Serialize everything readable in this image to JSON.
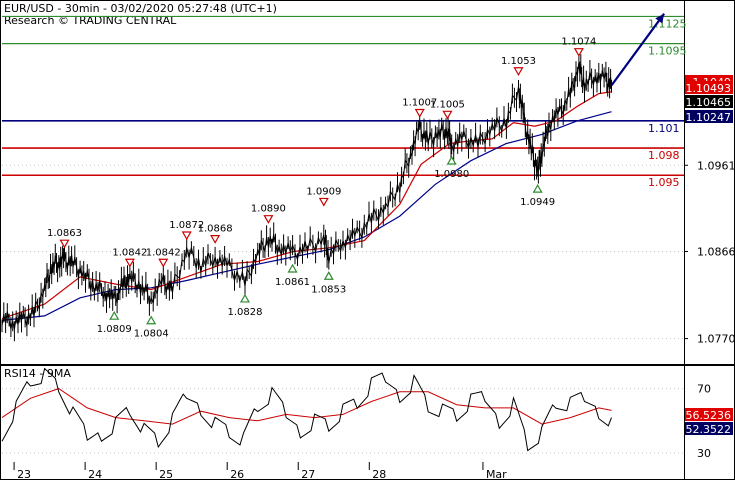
{
  "header": {
    "title": "EUR/USD - 30min - 03/02/2020 05:27:48 (UTC+1)",
    "credit": "Research © TRADING CENTRAL"
  },
  "colors": {
    "candle": "#000000",
    "ma_fast": "#cc0000",
    "ma_slow": "#00008b",
    "target_green": "#2e8b2e",
    "pivot_blue": "#00007f",
    "support_red": "#cc0000",
    "arrow": "#00007f",
    "marker_down": "#cc0000",
    "marker_up": "#2e8b2e",
    "label_red_bg": "#e00000",
    "label_black_bg": "#000000",
    "label_darkblue_bg": "#000060",
    "rsi_line": "#000000",
    "rsi_ma": "#cc0000"
  },
  "chart_data": [
    {
      "type": "line",
      "title": "EUR/USD - 30min",
      "ylim": [
        1.0742,
        1.1142
      ],
      "y_ticks": [
        "1.0961",
        "1.0866",
        "1.0770"
      ],
      "x_ticks": [
        "23",
        "24",
        "25",
        "26",
        "27",
        "28",
        "Mar"
      ],
      "levels": [
        {
          "label": "1.1125",
          "value": 1.1125,
          "color": "green"
        },
        {
          "label": "1.1095",
          "value": 1.1095,
          "color": "green"
        },
        {
          "label": "1.101",
          "value": 1.101,
          "color": "blue"
        },
        {
          "label": "1.098",
          "value": 1.098,
          "color": "red"
        },
        {
          "label": "1.095",
          "value": 1.095,
          "color": "red"
        }
      ],
      "price_tags": [
        {
          "label": "1.1049",
          "value": 1.1049,
          "style": "red"
        },
        {
          "label": "1.10493",
          "value": 1.10493,
          "style": "red"
        },
        {
          "label": "1.10465",
          "value": 1.10465,
          "style": "black"
        },
        {
          "label": "1.10247",
          "value": 1.10247,
          "style": "darkblue"
        }
      ],
      "annotations": [
        {
          "label": "1.0863",
          "x": 23.28,
          "value": 1.0863,
          "kind": "high"
        },
        {
          "label": "1.0809",
          "x": 23.98,
          "value": 1.0809,
          "kind": "low"
        },
        {
          "label": "1.0842",
          "x": 24.2,
          "value": 1.0842,
          "kind": "high"
        },
        {
          "label": "1.0804",
          "x": 24.5,
          "value": 1.0804,
          "kind": "low"
        },
        {
          "label": "1.0842",
          "x": 24.67,
          "value": 1.0842,
          "kind": "high"
        },
        {
          "label": "1.0872",
          "x": 25.0,
          "value": 1.0872,
          "kind": "high"
        },
        {
          "label": "1.0868",
          "x": 25.4,
          "value": 1.0868,
          "kind": "high"
        },
        {
          "label": "1.0828",
          "x": 25.82,
          "value": 1.0828,
          "kind": "low"
        },
        {
          "label": "1.0890",
          "x": 26.15,
          "value": 1.089,
          "kind": "high"
        },
        {
          "label": "1.0861",
          "x": 26.49,
          "value": 1.0861,
          "kind": "low"
        },
        {
          "label": "1.0909",
          "x": 26.93,
          "value": 1.0909,
          "kind": "high"
        },
        {
          "label": "1.0853",
          "x": 27.0,
          "value": 1.0853,
          "kind": "low"
        },
        {
          "label": "1.1007",
          "x": 28.28,
          "value": 1.1007,
          "kind": "high"
        },
        {
          "label": "1.1005",
          "x": 28.67,
          "value": 1.1005,
          "kind": "high"
        },
        {
          "label": "1.0980",
          "x": 28.73,
          "value": 1.098,
          "kind": "low"
        },
        {
          "label": "1.1053",
          "x": 29.67,
          "value": 1.1053,
          "kind": "high"
        },
        {
          "label": "1.0949",
          "x": 29.94,
          "value": 1.0949,
          "kind": "low"
        },
        {
          "label": "1.1074",
          "x": 30.52,
          "value": 1.1074,
          "kind": "high"
        }
      ],
      "projection": {
        "from": [
          30.98,
          1.1049
        ],
        "to": [
          31.72,
          1.1128
        ]
      },
      "series": [
        {
          "name": "EUR/USD",
          "x": [
            22.4,
            22.55,
            22.7,
            22.85,
            23.0,
            23.1,
            23.2,
            23.28,
            23.4,
            23.55,
            23.7,
            23.85,
            23.98,
            24.1,
            24.2,
            24.35,
            24.5,
            24.67,
            24.8,
            25.0,
            25.2,
            25.4,
            25.6,
            25.82,
            26.0,
            26.15,
            26.3,
            26.49,
            26.7,
            26.93,
            27.0,
            27.2,
            27.4,
            27.6,
            27.8,
            28.0,
            28.15,
            28.28,
            28.4,
            28.55,
            28.67,
            28.73,
            28.9,
            29.1,
            29.3,
            29.5,
            29.67,
            29.75,
            29.85,
            29.94,
            30.0,
            30.1,
            30.25,
            30.4,
            30.52,
            30.6,
            30.75,
            30.9,
            30.98
          ],
          "values": [
            1.0793,
            1.0789,
            1.079,
            1.0798,
            1.0825,
            1.085,
            1.0855,
            1.0857,
            1.0853,
            1.084,
            1.0828,
            1.0822,
            1.0812,
            1.083,
            1.0838,
            1.0828,
            1.0815,
            1.0832,
            1.0825,
            1.0866,
            1.0852,
            1.086,
            1.0848,
            1.0832,
            1.0864,
            1.088,
            1.0872,
            1.0864,
            1.087,
            1.088,
            1.0862,
            1.0878,
            1.0884,
            1.0902,
            1.0915,
            1.094,
            1.0975,
            1.1002,
            1.0988,
            1.0996,
            1.1,
            1.0984,
            1.099,
            1.0985,
            1.1002,
            1.101,
            1.1048,
            1.101,
            1.0978,
            1.0955,
            1.0975,
            1.1008,
            1.1018,
            1.104,
            1.107,
            1.105,
            1.106,
            1.1055,
            1.1048
          ]
        },
        {
          "name": "MA fast",
          "x": [
            22.4,
            23.0,
            23.5,
            24.0,
            24.5,
            25.0,
            25.5,
            26.0,
            26.5,
            27.0,
            27.5,
            28.0,
            28.3,
            28.7,
            29.0,
            29.3,
            29.6,
            29.9,
            30.2,
            30.5,
            30.8,
            30.98
          ],
          "values": [
            1.0792,
            1.0808,
            1.0838,
            1.083,
            1.0824,
            1.0838,
            1.0852,
            1.0855,
            1.0866,
            1.087,
            1.0878,
            1.0918,
            1.0962,
            1.0985,
            1.0988,
            1.099,
            1.1008,
            1.1004,
            1.101,
            1.1026,
            1.104,
            1.1042
          ]
        },
        {
          "name": "MA slow",
          "x": [
            22.4,
            23.0,
            23.5,
            24.0,
            24.5,
            25.0,
            25.5,
            26.0,
            26.5,
            27.0,
            27.5,
            28.0,
            28.5,
            29.0,
            29.5,
            30.0,
            30.5,
            30.98
          ],
          "values": [
            1.079,
            1.0795,
            1.0815,
            1.0824,
            1.0826,
            1.0834,
            1.0843,
            1.0852,
            1.086,
            1.0868,
            1.0882,
            1.0905,
            1.094,
            1.0966,
            1.0985,
            1.0995,
            1.101,
            1.102
          ]
        }
      ]
    },
    {
      "type": "line",
      "title": "RSI14 - 9MA",
      "ylim": [
        22,
        84
      ],
      "y_ticks": [
        "70",
        "30"
      ],
      "tags": [
        {
          "label": "56.5236",
          "value": 56.5236,
          "style": "red"
        },
        {
          "label": "52.3522",
          "value": 52.3522,
          "style": "darkblue"
        }
      ],
      "series": [
        {
          "name": "RSI14",
          "x": [
            22.4,
            22.6,
            22.8,
            23.0,
            23.2,
            23.4,
            23.6,
            23.8,
            24.0,
            24.2,
            24.4,
            24.6,
            24.8,
            25.0,
            25.2,
            25.4,
            25.6,
            25.8,
            26.0,
            26.2,
            26.4,
            26.6,
            26.8,
            27.0,
            27.2,
            27.4,
            27.6,
            27.8,
            28.0,
            28.2,
            28.4,
            28.6,
            28.8,
            29.0,
            29.2,
            29.4,
            29.6,
            29.8,
            30.0,
            30.2,
            30.4,
            30.6,
            30.8,
            30.98
          ],
          "values": [
            44,
            60,
            76,
            78,
            70,
            52,
            38,
            44,
            50,
            58,
            44,
            36,
            48,
            64,
            60,
            50,
            44,
            38,
            58,
            64,
            52,
            46,
            52,
            48,
            56,
            60,
            70,
            74,
            68,
            76,
            60,
            56,
            52,
            60,
            62,
            52,
            62,
            36,
            42,
            60,
            58,
            62,
            58,
            52
          ]
        },
        {
          "name": "9MA",
          "x": [
            22.4,
            22.8,
            23.2,
            23.6,
            24.0,
            24.4,
            24.8,
            25.2,
            25.6,
            26.0,
            26.4,
            26.8,
            27.2,
            27.6,
            28.0,
            28.4,
            28.8,
            29.2,
            29.6,
            30.0,
            30.4,
            30.8,
            30.98
          ],
          "values": [
            52,
            64,
            70,
            58,
            52,
            50,
            48,
            56,
            52,
            50,
            54,
            52,
            54,
            62,
            68,
            68,
            60,
            58,
            58,
            48,
            52,
            58,
            56.5
          ]
        }
      ]
    }
  ]
}
